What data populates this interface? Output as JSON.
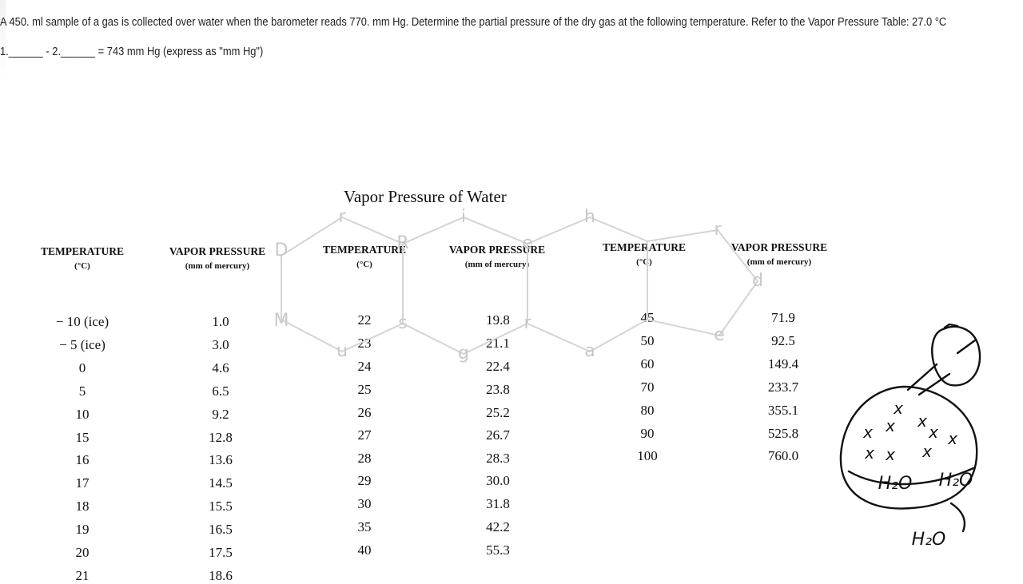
{
  "question": {
    "text": "A 450. ml sample of a gas is collected over water when the barometer reads 770. mm Hg. Determine the partial pressure of the dry gas at the following temperature. Refer to the Vapor Pressure Table: 27.0 °C",
    "answer_line": "1.______ - 2.______ = 743 mm Hg (express as \"mm Hg\")"
  },
  "table": {
    "title": "Vapor Pressure of Water",
    "temp_header": "TEMPERATURE",
    "temp_unit": "(°C)",
    "vp_header": "VAPOR PRESSURE",
    "vp_unit": "(mm of mercury)",
    "col1": [
      {
        "t": "− 10 (ice)",
        "p": "1.0"
      },
      {
        "t": "− 5 (ice)",
        "p": "3.0"
      },
      {
        "t": "0",
        "p": "4.6"
      },
      {
        "t": "5",
        "p": "6.5"
      },
      {
        "t": "10",
        "p": "9.2"
      },
      {
        "t": "15",
        "p": "12.8"
      },
      {
        "t": "16",
        "p": "13.6"
      },
      {
        "t": "17",
        "p": "14.5"
      },
      {
        "t": "18",
        "p": "15.5"
      },
      {
        "t": "19",
        "p": "16.5"
      },
      {
        "t": "20",
        "p": "17.5"
      },
      {
        "t": "21",
        "p": "18.6"
      }
    ],
    "col2": [
      {
        "t": "22",
        "p": "19.8"
      },
      {
        "t": "23",
        "p": "21.1"
      },
      {
        "t": "24",
        "p": "22.4"
      },
      {
        "t": "25",
        "p": "23.8"
      },
      {
        "t": "26",
        "p": "25.2"
      },
      {
        "t": "27",
        "p": "26.7"
      },
      {
        "t": "28",
        "p": "28.3"
      },
      {
        "t": "29",
        "p": "30.0"
      },
      {
        "t": "30",
        "p": "31.8"
      },
      {
        "t": "35",
        "p": "42.2"
      },
      {
        "t": "40",
        "p": "55.3"
      }
    ],
    "col3": [
      {
        "t": "45",
        "p": "71.9"
      },
      {
        "t": "50",
        "p": "92.5"
      },
      {
        "t": "60",
        "p": "149.4"
      },
      {
        "t": "70",
        "p": "233.7"
      },
      {
        "t": "80",
        "p": "355.1"
      },
      {
        "t": "90",
        "p": "525.8"
      },
      {
        "t": "100",
        "p": "760.0"
      }
    ]
  },
  "watermark": {
    "letters": [
      "D",
      "r",
      "R",
      "i",
      "e",
      "h",
      "r",
      "d",
      "e",
      "a",
      "r",
      "g",
      "s",
      "u",
      "M"
    ],
    "color": "#c8c8c8"
  },
  "sketch": {
    "labels": [
      "H₂O",
      "H₂O",
      "H₂O"
    ],
    "marks": [
      "x",
      "x",
      "x",
      "x",
      "x",
      "x",
      "x",
      "x",
      "x"
    ]
  }
}
